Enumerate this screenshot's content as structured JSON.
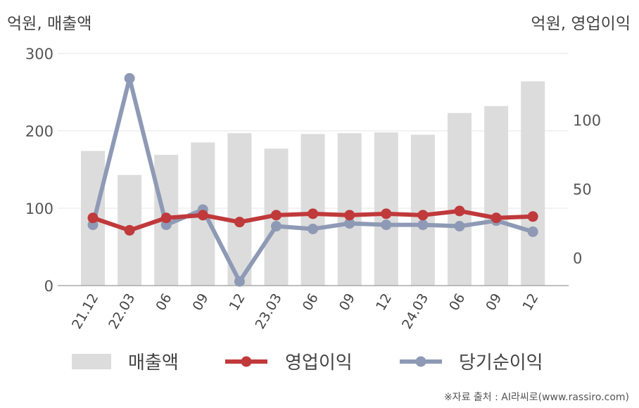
{
  "chart_data": {
    "type": "bar+line",
    "left_axis_label": "억원, 매출액",
    "right_axis_label": "억원, 영업이익",
    "categories": [
      "21.12",
      "22.03",
      "06",
      "09",
      "12",
      "23.03",
      "06",
      "09",
      "12",
      "24.03",
      "06",
      "09",
      "12"
    ],
    "left_ylim": [
      0,
      300
    ],
    "left_yticks": [
      0,
      100,
      200,
      300
    ],
    "right_ylim": [
      -20,
      148
    ],
    "right_yticks": [
      0,
      50,
      100
    ],
    "grid": true,
    "legend_position": "bottom",
    "series": [
      {
        "name": "매출액",
        "type": "bar",
        "axis": "left",
        "color": "#dcdcdc",
        "values": [
          174,
          143,
          169,
          185,
          197,
          177,
          196,
          197,
          198,
          195,
          223,
          232,
          264
        ]
      },
      {
        "name": "영업이익",
        "type": "line",
        "axis": "right",
        "color": "#c0393b",
        "values": [
          29,
          20,
          29,
          31,
          26,
          31,
          32,
          31,
          32,
          31,
          34,
          29,
          30
        ]
      },
      {
        "name": "당기순이익",
        "type": "line",
        "axis": "right",
        "color": "#8e9ab5",
        "values": [
          24,
          130,
          24,
          35,
          -17,
          23,
          21,
          25,
          24,
          24,
          23,
          27,
          19
        ]
      }
    ]
  },
  "source_note": "※자료 출처 : AI라씨로(www.rassiro.com)"
}
